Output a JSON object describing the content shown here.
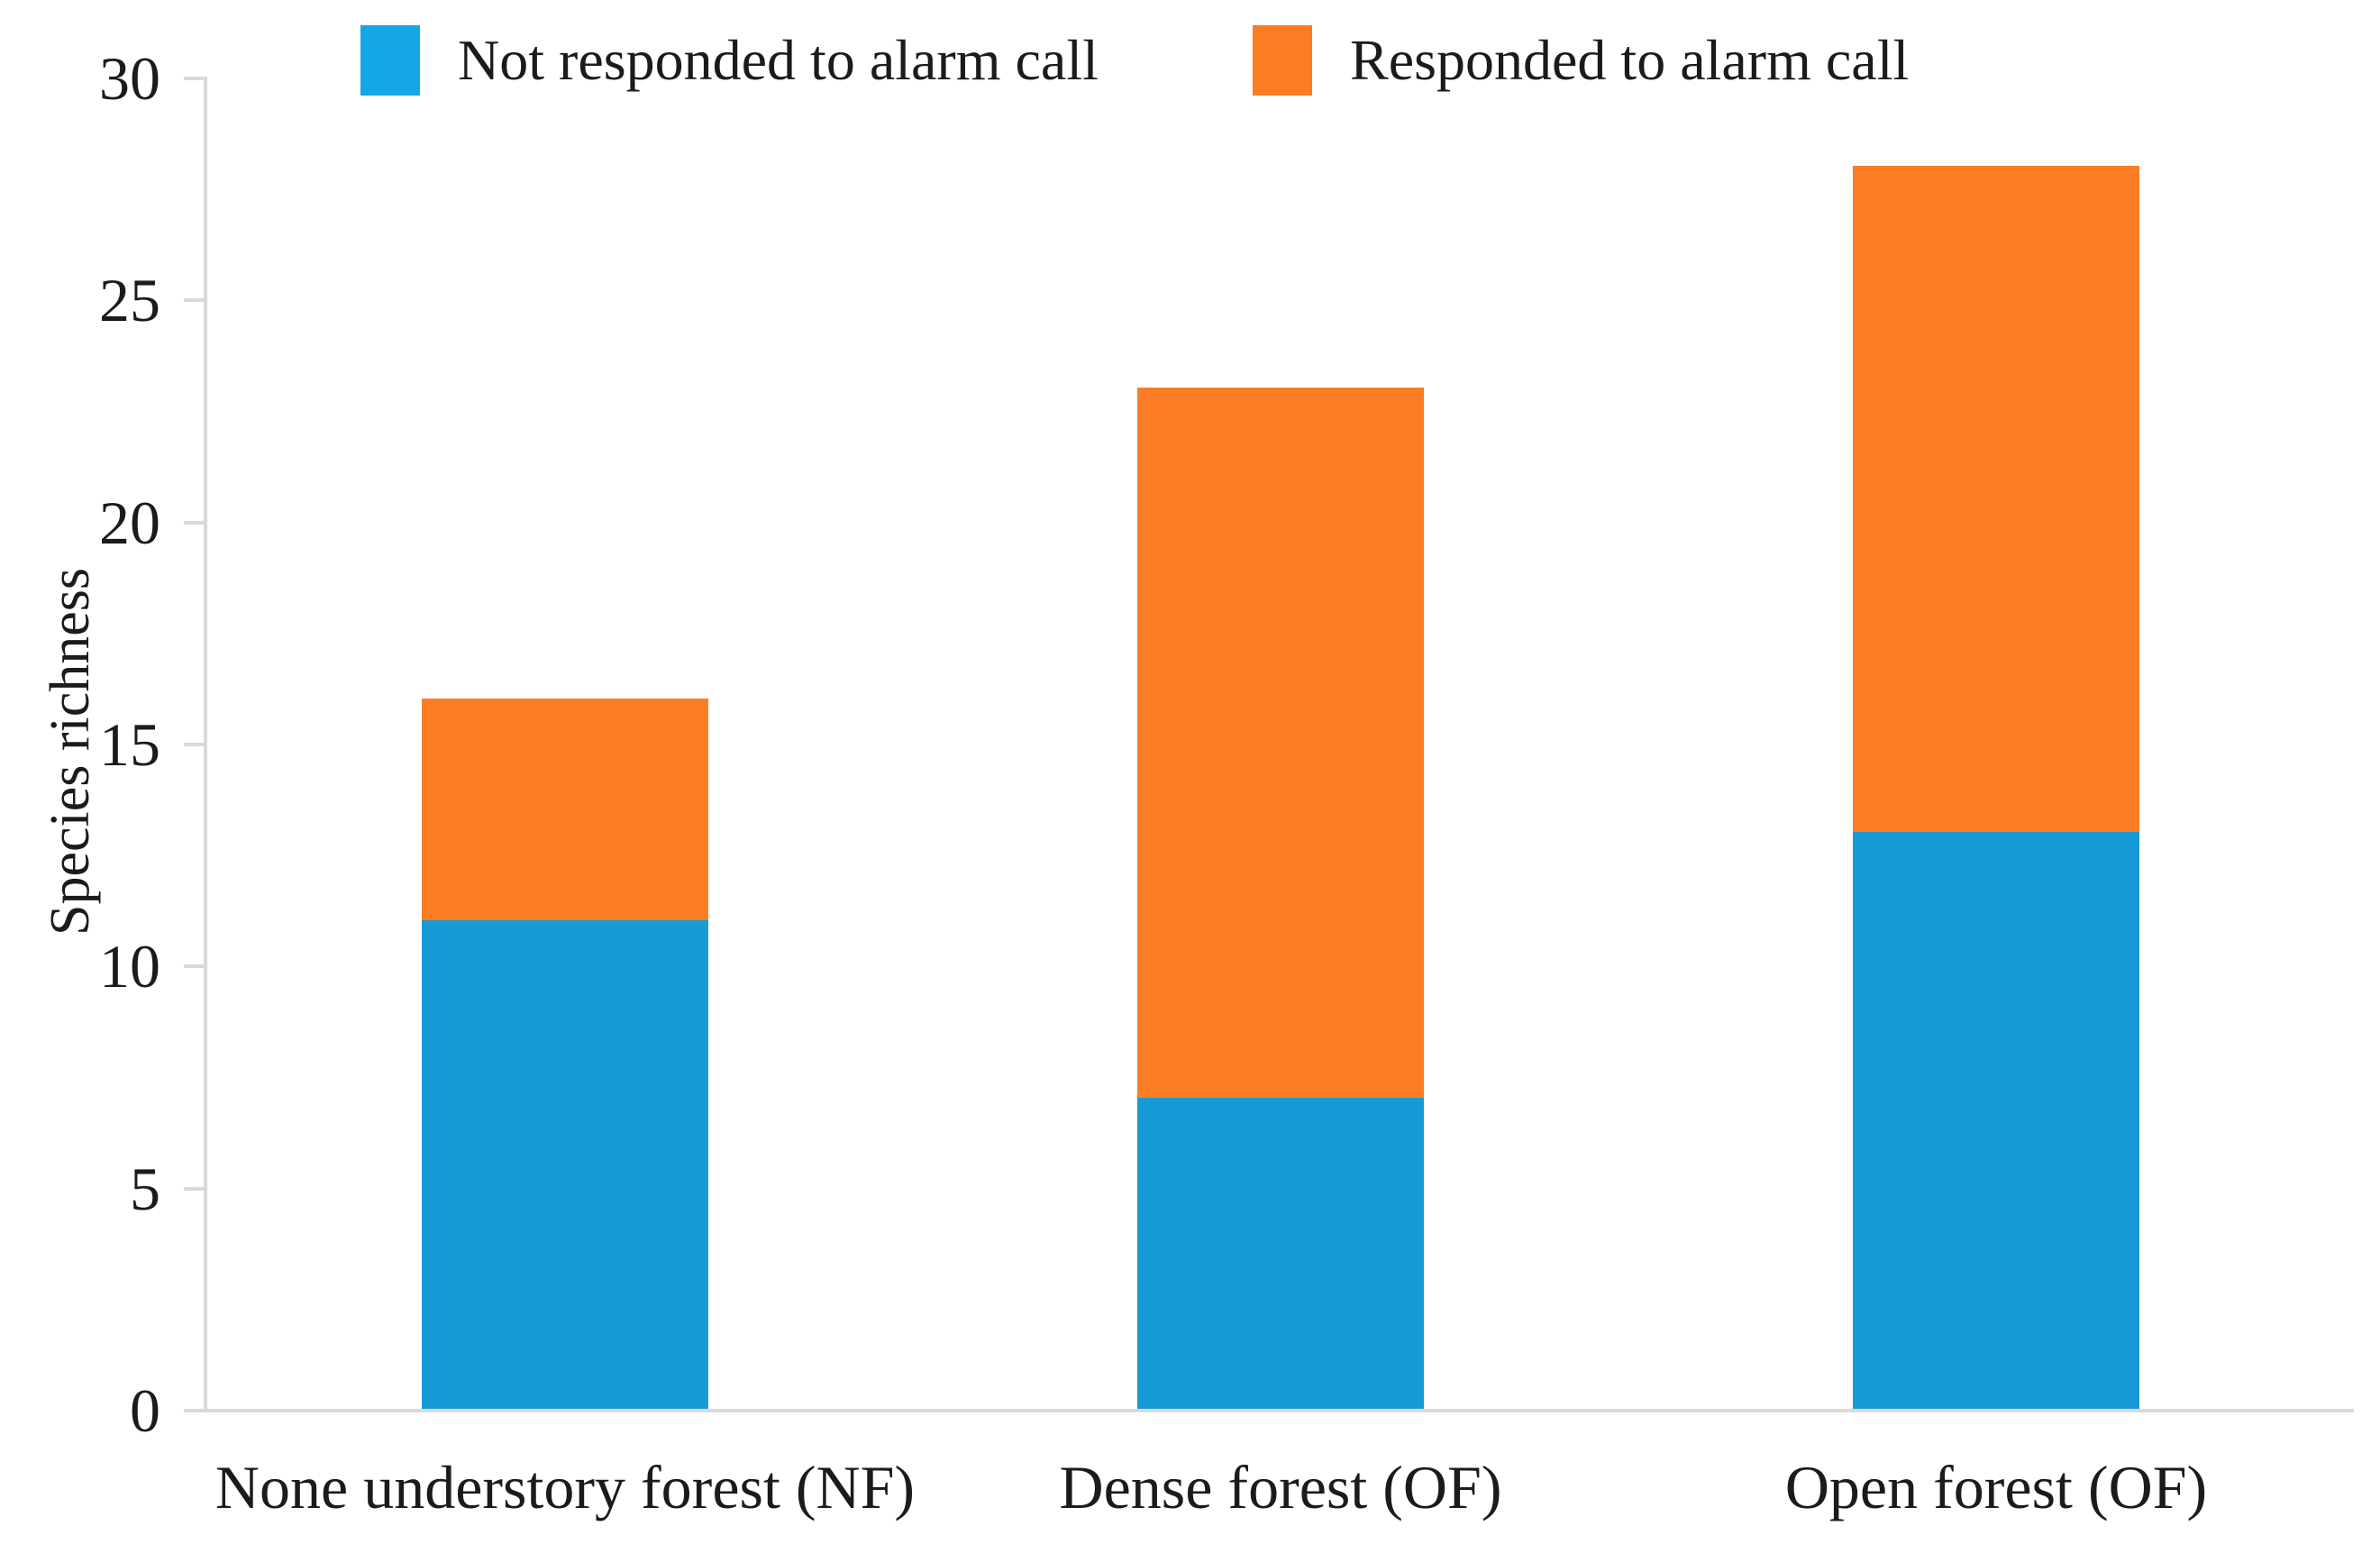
{
  "chart_data": {
    "type": "bar",
    "stacked": true,
    "title": "",
    "xlabel": "",
    "ylabel": "Species richness",
    "categories": [
      "None understory forest (NF)",
      "Dense forest (OF)",
      "Open forest (OF)"
    ],
    "series": [
      {
        "name": "Not responded to alarm call",
        "color": "#189ad6",
        "values": [
          11,
          7,
          13
        ]
      },
      {
        "name": "Responded to alarm call",
        "color": "#fb7d23",
        "values": [
          5,
          16,
          15
        ]
      }
    ],
    "totals": [
      16,
      23,
      28
    ],
    "ylim": [
      0,
      30
    ],
    "yticks": [
      0,
      5,
      10,
      15,
      20,
      25,
      30
    ],
    "grid": false,
    "legend_position": "top",
    "legend": [
      {
        "label": "Not responded to alarm call",
        "swatch_color": "#14a7e5"
      },
      {
        "label": "Responded to alarm call",
        "swatch_color": "#fb7d23"
      }
    ],
    "axis_color": "#d9d9d9",
    "text_color": "#1b1b1b",
    "background_color": "#ffffff"
  }
}
